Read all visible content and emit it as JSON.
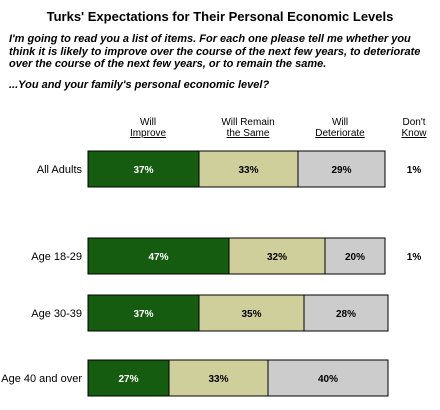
{
  "title": "Turks' Expectations for Their Personal Economic Levels",
  "question": "I'm going to read you a list of items. For each one please tell me whether you think it is likely to improve over the course of the next few years, to deteriorate over the course of the next few years, or to remain the same.",
  "subquestion": "...You and your family's personal economic level?",
  "columns": {
    "improve": {
      "line1": "Will",
      "line2": "Improve"
    },
    "same": {
      "line1": "Will Remain",
      "line2": "the Same"
    },
    "deteriorate": {
      "line1": "Will",
      "line2": "Deteriorate"
    },
    "dontknow": {
      "line1": "Don't",
      "line2": "Know"
    }
  },
  "colors": {
    "improve": "#165c10",
    "same": "#cfcf9c",
    "deteriorate": "#cccccc",
    "border": "#000000"
  },
  "chart_data": {
    "type": "bar",
    "stacked": true,
    "orientation": "horizontal",
    "categories": [
      "All Adults",
      "Age 18-29",
      "Age 30-39",
      "Age 40 and over"
    ],
    "series": [
      {
        "name": "Will Improve",
        "values": [
          37,
          47,
          37,
          27
        ]
      },
      {
        "name": "Will Remain the Same",
        "values": [
          33,
          32,
          35,
          33
        ]
      },
      {
        "name": "Will Deteriorate",
        "values": [
          29,
          20,
          28,
          40
        ]
      }
    ],
    "dont_know": [
      "1%",
      "1%",
      "",
      ""
    ],
    "value_suffix": "%"
  }
}
